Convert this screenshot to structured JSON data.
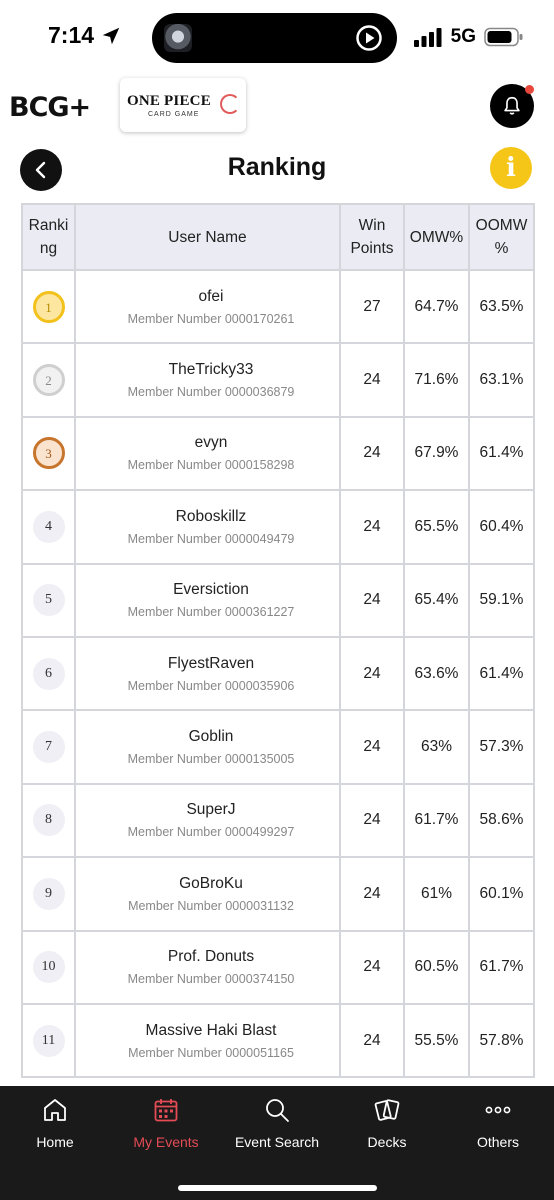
{
  "status_bar": {
    "time": "7:14",
    "network": "5G"
  },
  "header": {
    "brand_logo": "BCG+",
    "op_badge": {
      "title": "ONE PIECE",
      "subtitle": "CARD GAME"
    }
  },
  "page": {
    "title": "Ranking",
    "info_glyph": "i"
  },
  "table": {
    "headers": {
      "ranking": "Ranki\nng",
      "user_name": "User Name",
      "win_points": "Win\nPoints",
      "omw": "OMW%",
      "oomw": "OOMW\n%"
    },
    "member_prefix": "Member Number",
    "rows": [
      {
        "rank": "1",
        "name": "ofei",
        "member": "0000170261",
        "win": "27",
        "omw": "64.7%",
        "oomw": "63.5%"
      },
      {
        "rank": "2",
        "name": "TheTricky33",
        "member": "0000036879",
        "win": "24",
        "omw": "71.6%",
        "oomw": "63.1%"
      },
      {
        "rank": "3",
        "name": "evyn",
        "member": "0000158298",
        "win": "24",
        "omw": "67.9%",
        "oomw": "61.4%"
      },
      {
        "rank": "4",
        "name": "Roboskillz",
        "member": "0000049479",
        "win": "24",
        "omw": "65.5%",
        "oomw": "60.4%"
      },
      {
        "rank": "5",
        "name": "Eversiction",
        "member": "0000361227",
        "win": "24",
        "omw": "65.4%",
        "oomw": "59.1%"
      },
      {
        "rank": "6",
        "name": "FlyestRaven",
        "member": "0000035906",
        "win": "24",
        "omw": "63.6%",
        "oomw": "61.4%"
      },
      {
        "rank": "7",
        "name": "Goblin",
        "member": "0000135005",
        "win": "24",
        "omw": "63%",
        "oomw": "57.3%"
      },
      {
        "rank": "8",
        "name": "SuperJ",
        "member": "0000499297",
        "win": "24",
        "omw": "61.7%",
        "oomw": "58.6%"
      },
      {
        "rank": "9",
        "name": "GoBroKu",
        "member": "0000031132",
        "win": "24",
        "omw": "61%",
        "oomw": "60.1%"
      },
      {
        "rank": "10",
        "name": "Prof. Donuts",
        "member": "0000374150",
        "win": "24",
        "omw": "60.5%",
        "oomw": "61.7%"
      },
      {
        "rank": "11",
        "name": "Massive Haki Blast",
        "member": "0000051165",
        "win": "24",
        "omw": "55.5%",
        "oomw": "57.8%"
      }
    ]
  },
  "bottom_nav": {
    "items": [
      {
        "label": "Home",
        "icon": "home-icon",
        "active": false
      },
      {
        "label": "My Events",
        "icon": "calendar-icon",
        "active": true
      },
      {
        "label": "Event Search",
        "icon": "search-icon",
        "active": false
      },
      {
        "label": "Decks",
        "icon": "cards-icon",
        "active": false
      },
      {
        "label": "Others",
        "icon": "more-icon",
        "active": false
      }
    ]
  },
  "colors": {
    "accent_active": "#e34b55",
    "info_yellow": "#f5c518",
    "nav_background": "#1a1a1a"
  }
}
